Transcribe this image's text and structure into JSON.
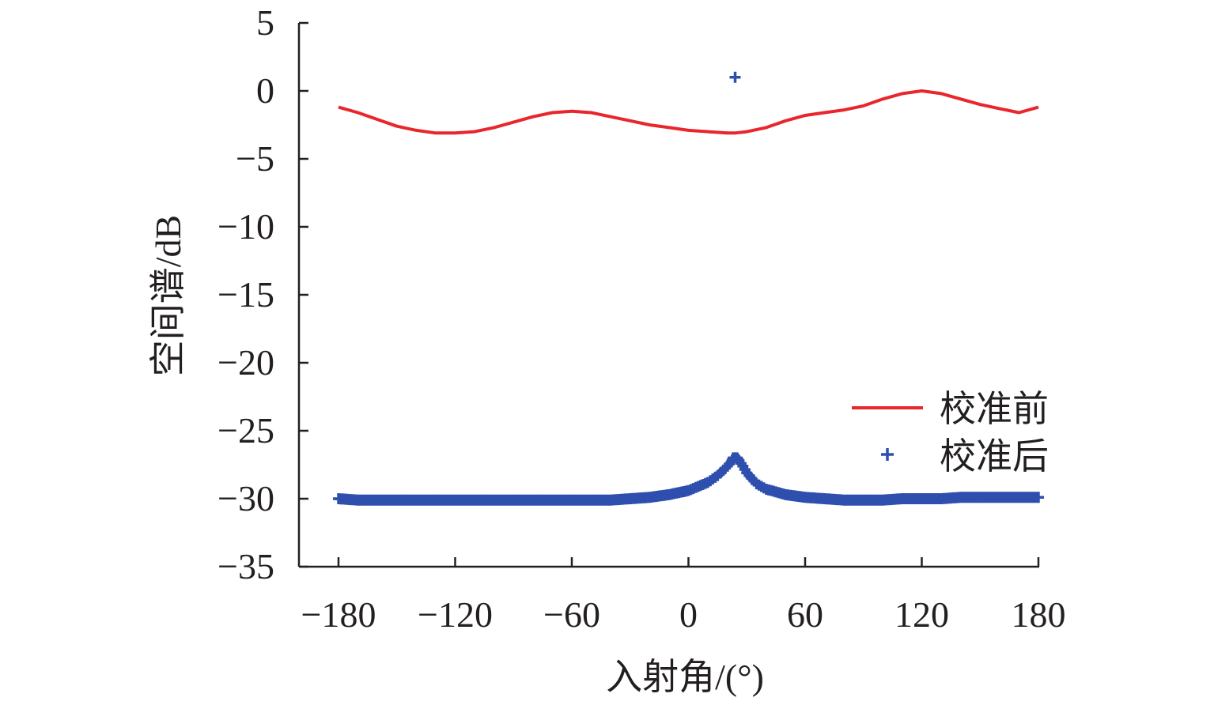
{
  "chart_data": {
    "type": "line",
    "title": "",
    "xlabel": "入射角/(°)",
    "ylabel": "空间谱/dB",
    "xlim": [
      -180,
      180
    ],
    "ylim": [
      -35,
      5
    ],
    "x_ticks": [
      -180,
      -120,
      -60,
      0,
      60,
      120,
      180
    ],
    "y_ticks": [
      5,
      0,
      -5,
      -10,
      -15,
      -20,
      -25,
      -30,
      -35
    ],
    "x_tick_labels": [
      "−180",
      "−120",
      "−60",
      "0",
      "60",
      "120",
      "180"
    ],
    "y_tick_labels": [
      "5",
      "0",
      "−5",
      "−10",
      "−15",
      "−20",
      "−25",
      "−30",
      "−35"
    ],
    "grid": false,
    "legend_position": "lower-right",
    "series": [
      {
        "name": "校准前",
        "style": "line",
        "color": "#e8262b",
        "x": [
          -180,
          -170,
          -160,
          -150,
          -140,
          -130,
          -120,
          -110,
          -100,
          -90,
          -80,
          -70,
          -60,
          -50,
          -40,
          -30,
          -20,
          -10,
          0,
          10,
          20,
          24,
          30,
          40,
          50,
          60,
          70,
          80,
          90,
          100,
          110,
          120,
          130,
          140,
          150,
          160,
          170,
          180
        ],
        "y": [
          -1.2,
          -1.6,
          -2.1,
          -2.6,
          -2.9,
          -3.1,
          -3.1,
          -3.0,
          -2.7,
          -2.3,
          -1.9,
          -1.6,
          -1.5,
          -1.6,
          -1.9,
          -2.2,
          -2.5,
          -2.7,
          -2.9,
          -3.0,
          -3.1,
          -3.1,
          -3.0,
          -2.7,
          -2.2,
          -1.8,
          -1.6,
          -1.4,
          -1.1,
          -0.6,
          -0.2,
          0.0,
          -0.2,
          -0.6,
          -1.0,
          -1.3,
          -1.6,
          -1.2
        ]
      },
      {
        "name": "校准后",
        "style": "marker",
        "marker": "+",
        "color": "#2e4fae",
        "x": [
          -180,
          -170,
          -160,
          -150,
          -140,
          -130,
          -120,
          -110,
          -100,
          -90,
          -80,
          -70,
          -60,
          -50,
          -40,
          -30,
          -20,
          -10,
          0,
          5,
          10,
          15,
          18,
          20,
          22,
          23,
          24,
          25,
          26,
          28,
          30,
          35,
          40,
          50,
          60,
          70,
          80,
          90,
          100,
          110,
          120,
          130,
          140,
          150,
          160,
          170,
          180
        ],
        "y": [
          -30.0,
          -30.1,
          -30.1,
          -30.1,
          -30.1,
          -30.1,
          -30.1,
          -30.1,
          -30.1,
          -30.1,
          -30.1,
          -30.1,
          -30.1,
          -30.1,
          -30.1,
          -30.0,
          -29.9,
          -29.7,
          -29.4,
          -29.1,
          -28.8,
          -28.3,
          -27.9,
          -27.6,
          -27.3,
          -27.0,
          1.0,
          -27.0,
          -27.2,
          -27.6,
          -28.1,
          -28.9,
          -29.3,
          -29.7,
          -29.9,
          -30.0,
          -30.1,
          -30.1,
          -30.1,
          -30.0,
          -30.0,
          -30.0,
          -29.9,
          -29.9,
          -29.9,
          -29.9,
          -29.9
        ]
      }
    ]
  }
}
